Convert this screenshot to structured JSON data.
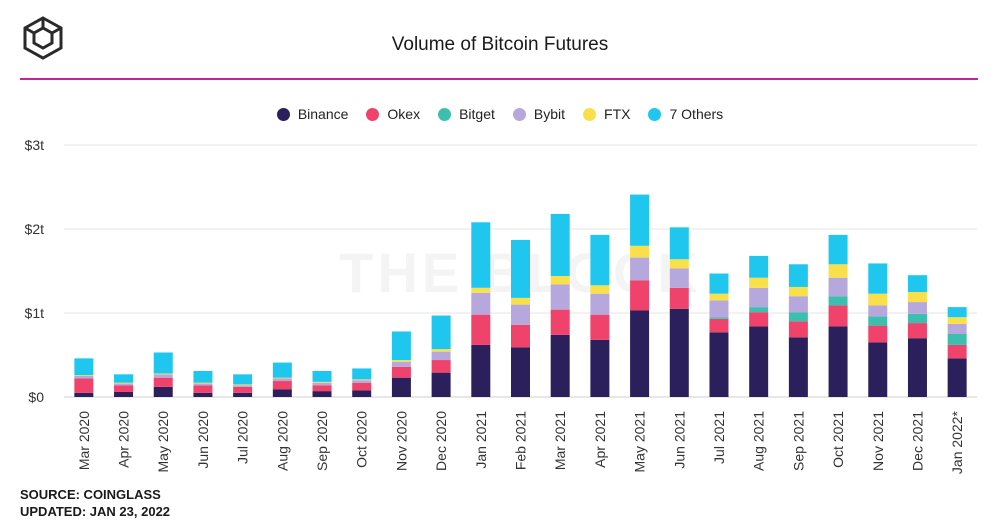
{
  "header": {
    "title": "Volume of Bitcoin Futures",
    "logo_icon": "the-block-cube-icon"
  },
  "watermark": "THE BLOCK",
  "footer": {
    "source": "SOURCE: COINGLASS",
    "updated": "UPDATED: JAN 23, 2022"
  },
  "colors": {
    "accent_rule": "#c0269c",
    "Binance": "#2b1f5c",
    "Okex": "#f0436b",
    "Bitget": "#3dbfb0",
    "Bybit": "#b6a7dd",
    "FTX": "#f9e04b",
    "7 Others": "#1fc7ef"
  },
  "chart_data": {
    "type": "bar",
    "stacked": true,
    "title": "Volume of Bitcoin Futures",
    "xlabel": "",
    "ylabel": "",
    "ylim": [
      0,
      3
    ],
    "y_unit": "trillion USD",
    "y_ticks": [
      {
        "value": 0,
        "label": "$0"
      },
      {
        "value": 1,
        "label": "$1t"
      },
      {
        "value": 2,
        "label": "$2t"
      },
      {
        "value": 3,
        "label": "$3t"
      }
    ],
    "grid": "horizontal",
    "legend_position": "top-center",
    "categories": [
      "Mar 2020",
      "Apr 2020",
      "May 2020",
      "Jun 2020",
      "Jul 2020",
      "Aug 2020",
      "Sep 2020",
      "Oct 2020",
      "Nov 2020",
      "Dec 2020",
      "Jan 2021",
      "Feb 2021",
      "Mar 2021",
      "Apr 2021",
      "May 2021",
      "Jun 2021",
      "Jul 2021",
      "Aug 2021",
      "Sep 2021",
      "Oct 2021",
      "Nov 2021",
      "Dec 2021",
      "Jan 2022*"
    ],
    "series": [
      {
        "name": "Binance",
        "values": [
          0.05,
          0.06,
          0.12,
          0.05,
          0.05,
          0.09,
          0.07,
          0.08,
          0.23,
          0.29,
          0.62,
          0.59,
          0.74,
          0.68,
          1.03,
          1.05,
          0.77,
          0.84,
          0.71,
          0.84,
          0.65,
          0.7,
          0.46
        ]
      },
      {
        "name": "Okex",
        "values": [
          0.17,
          0.08,
          0.11,
          0.09,
          0.07,
          0.1,
          0.07,
          0.09,
          0.13,
          0.15,
          0.36,
          0.27,
          0.3,
          0.3,
          0.36,
          0.25,
          0.16,
          0.17,
          0.19,
          0.25,
          0.2,
          0.18,
          0.16
        ]
      },
      {
        "name": "Bitget",
        "values": [
          0.0,
          0.0,
          0.0,
          0.0,
          0.0,
          0.0,
          0.0,
          0.0,
          0.0,
          0.0,
          0.0,
          0.0,
          0.0,
          0.0,
          0.0,
          0.0,
          0.02,
          0.06,
          0.11,
          0.11,
          0.11,
          0.11,
          0.13
        ]
      },
      {
        "name": "Bybit",
        "values": [
          0.03,
          0.02,
          0.04,
          0.02,
          0.02,
          0.03,
          0.03,
          0.03,
          0.06,
          0.1,
          0.26,
          0.24,
          0.3,
          0.25,
          0.27,
          0.23,
          0.2,
          0.23,
          0.19,
          0.22,
          0.13,
          0.14,
          0.12
        ]
      },
      {
        "name": "FTX",
        "values": [
          0.01,
          0.01,
          0.01,
          0.01,
          0.01,
          0.01,
          0.01,
          0.01,
          0.02,
          0.03,
          0.06,
          0.08,
          0.1,
          0.1,
          0.14,
          0.11,
          0.08,
          0.12,
          0.11,
          0.16,
          0.14,
          0.12,
          0.08
        ]
      },
      {
        "name": "7 Others",
        "values": [
          0.2,
          0.1,
          0.25,
          0.14,
          0.12,
          0.18,
          0.13,
          0.13,
          0.34,
          0.4,
          0.78,
          0.69,
          0.74,
          0.6,
          0.61,
          0.38,
          0.24,
          0.26,
          0.27,
          0.35,
          0.36,
          0.2,
          0.12
        ]
      }
    ]
  }
}
